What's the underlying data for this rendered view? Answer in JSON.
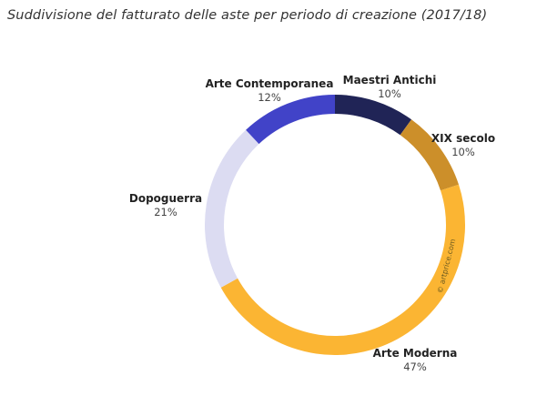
{
  "title": "Suddivisione del fatturato delle aste per periodo di creazione (2017/18)",
  "watermark": "© artprice.com",
  "chart_data": {
    "type": "pie",
    "variant": "donut",
    "title": "Suddivisione del fatturato delle aste per periodo di creazione (2017/18)",
    "slices": [
      {
        "label": "Maestri Antichi",
        "value": 10,
        "display": "10%",
        "color": "#202456"
      },
      {
        "label": "XIX secolo",
        "value": 10,
        "display": "10%",
        "color": "#cc8f2a"
      },
      {
        "label": "Arte Moderna",
        "value": 47,
        "display": "47%",
        "color": "#fbb533"
      },
      {
        "label": "Dopoguerra",
        "value": 21,
        "display": "21%",
        "color": "#dcdcf2"
      },
      {
        "label": "Arte Contemporanea",
        "value": 12,
        "display": "12%",
        "color": "#4143c8"
      }
    ]
  }
}
